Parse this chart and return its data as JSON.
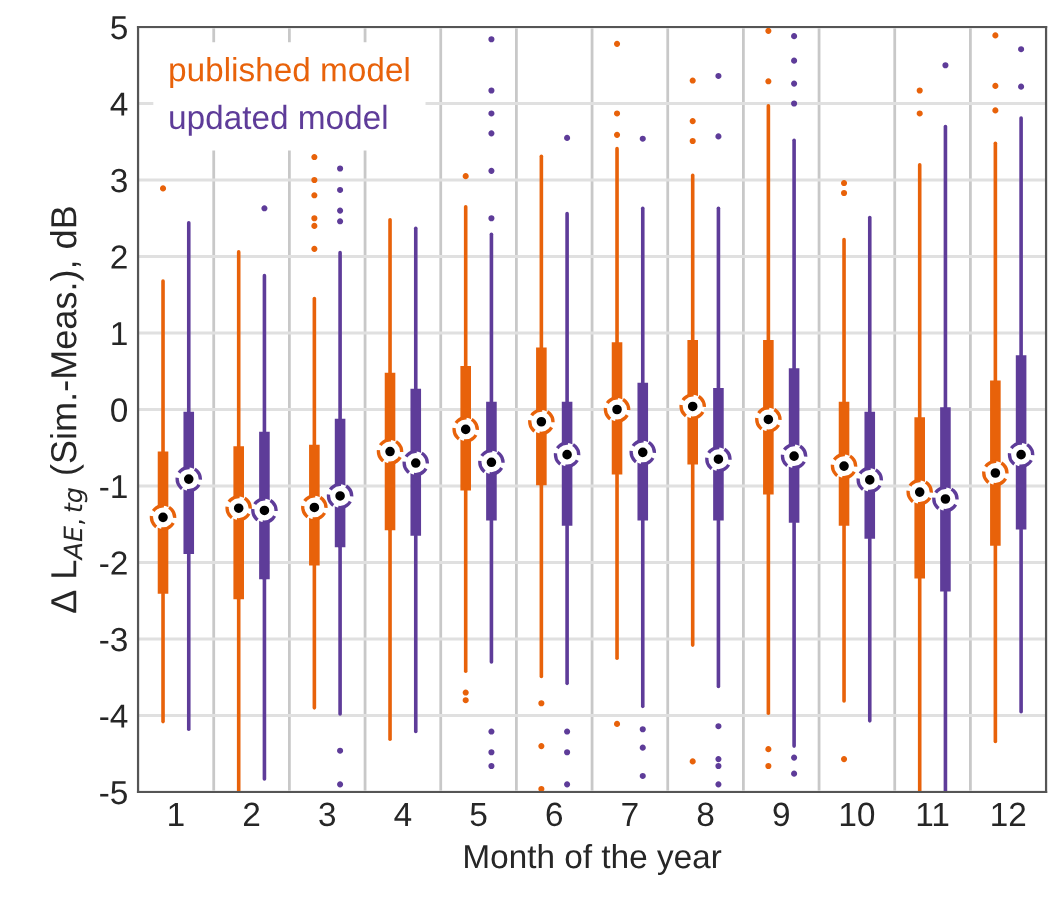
{
  "chart_data": {
    "type": "box",
    "xlabel": "Month of the year",
    "ylabel": "Δ L$_{AE,tg}$ (Sim.-Meas.), dB",
    "categories": [
      "1",
      "2",
      "3",
      "4",
      "5",
      "6",
      "7",
      "8",
      "9",
      "10",
      "11",
      "12"
    ],
    "ylim": [
      -5,
      5
    ],
    "yticks": [
      -5,
      -4,
      -3,
      -2,
      -1,
      0,
      1,
      2,
      3,
      4,
      5
    ],
    "grid": true,
    "legend": "top left",
    "series": [
      {
        "name": "published model",
        "color": "#e8620a",
        "boxes": [
          {
            "low": -4.08,
            "q1": -2.41,
            "median": -1.41,
            "q3": -0.55,
            "high": 1.68,
            "outliers": [
              2.89
            ]
          },
          {
            "low": -5.0,
            "q1": -2.48,
            "median": -1.29,
            "q3": -0.48,
            "high": 2.06
          },
          {
            "low": -3.9,
            "q1": -2.04,
            "median": -1.28,
            "q3": -0.46,
            "high": 1.45,
            "outliers": [
              2.1,
              2.4,
              2.5,
              2.8,
              3.0,
              3.3
            ]
          },
          {
            "low": -4.31,
            "q1": -1.58,
            "median": -0.55,
            "q3": 0.48,
            "high": 2.48
          },
          {
            "low": -3.42,
            "q1": -1.06,
            "median": -0.26,
            "q3": 0.57,
            "high": 2.65,
            "outliers": [
              3.05,
              -3.7,
              -3.8
            ]
          },
          {
            "low": -3.49,
            "q1": -0.99,
            "median": -0.16,
            "q3": 0.81,
            "high": 3.31,
            "outliers": [
              -3.84,
              -4.4,
              -4.96
            ]
          },
          {
            "low": -3.25,
            "q1": -0.85,
            "median": 0.0,
            "q3": 0.88,
            "high": 3.41,
            "outliers": [
              4.78,
              3.87,
              3.59,
              -4.11
            ]
          },
          {
            "low": -3.08,
            "q1": -0.72,
            "median": 0.04,
            "q3": 0.91,
            "high": 3.06,
            "outliers": [
              4.3,
              3.77,
              3.51,
              -4.6
            ]
          },
          {
            "low": -3.97,
            "q1": -1.11,
            "median": -0.13,
            "q3": 0.91,
            "high": 3.97,
            "outliers": [
              4.95,
              4.29,
              -4.44,
              -4.66
            ]
          },
          {
            "low": -3.81,
            "q1": -1.52,
            "median": -0.74,
            "q3": 0.1,
            "high": 2.22,
            "outliers": [
              2.96,
              2.83,
              -4.57
            ]
          },
          {
            "low": -5.0,
            "q1": -2.21,
            "median": -1.08,
            "q3": -0.1,
            "high": 3.2,
            "outliers": [
              4.17,
              3.87
            ]
          },
          {
            "low": -4.34,
            "q1": -1.78,
            "median": -0.83,
            "q3": 0.38,
            "high": 3.48,
            "outliers": [
              4.89,
              4.23,
              3.91
            ]
          }
        ]
      },
      {
        "name": "updated model",
        "color": "#5e3c99",
        "boxes": [
          {
            "low": -4.18,
            "q1": -1.89,
            "median": -0.91,
            "q3": -0.03,
            "high": 2.44
          },
          {
            "low": -4.83,
            "q1": -2.22,
            "median": -1.32,
            "q3": -0.29,
            "high": 1.75,
            "outliers": [
              2.63
            ]
          },
          {
            "low": -3.98,
            "q1": -1.8,
            "median": -1.13,
            "q3": -0.12,
            "high": 2.05,
            "outliers": [
              3.15,
              2.87,
              2.6,
              2.46,
              -4.46,
              -4.9
            ]
          },
          {
            "low": -4.21,
            "q1": -1.65,
            "median": -0.7,
            "q3": 0.27,
            "high": 2.37
          },
          {
            "low": -3.3,
            "q1": -1.45,
            "median": -0.69,
            "q3": 0.1,
            "high": 2.29,
            "outliers": [
              4.84,
              4.17,
              3.87,
              3.61,
              3.12,
              2.5,
              -4.21,
              -4.48,
              -4.66
            ]
          },
          {
            "low": -3.58,
            "q1": -1.52,
            "median": -0.59,
            "q3": 0.1,
            "high": 2.56,
            "outliers": [
              3.55,
              -4.21,
              -4.48,
              -4.9
            ]
          },
          {
            "low": -3.88,
            "q1": -1.45,
            "median": -0.56,
            "q3": 0.35,
            "high": 2.63,
            "outliers": [
              3.54,
              -4.18,
              -4.42,
              -4.79
            ]
          },
          {
            "low": -3.62,
            "q1": -1.45,
            "median": -0.65,
            "q3": 0.28,
            "high": 2.63,
            "outliers": [
              4.36,
              3.57,
              -4.14,
              -4.57,
              -4.66,
              -4.9
            ]
          },
          {
            "low": -4.4,
            "q1": -1.48,
            "median": -0.61,
            "q3": 0.54,
            "high": 3.52,
            "outliers": [
              4.88,
              4.56,
              4.26,
              4.0,
              -4.55,
              -4.76
            ]
          },
          {
            "low": -4.07,
            "q1": -1.69,
            "median": -0.92,
            "q3": -0.03,
            "high": 2.51
          },
          {
            "low": -5.0,
            "q1": -2.38,
            "median": -1.17,
            "q3": 0.03,
            "high": 3.7,
            "outliers": [
              4.5
            ]
          },
          {
            "low": -3.95,
            "q1": -1.57,
            "median": -0.59,
            "q3": 0.71,
            "high": 3.81,
            "outliers": [
              4.71,
              4.22
            ]
          }
        ]
      }
    ]
  }
}
